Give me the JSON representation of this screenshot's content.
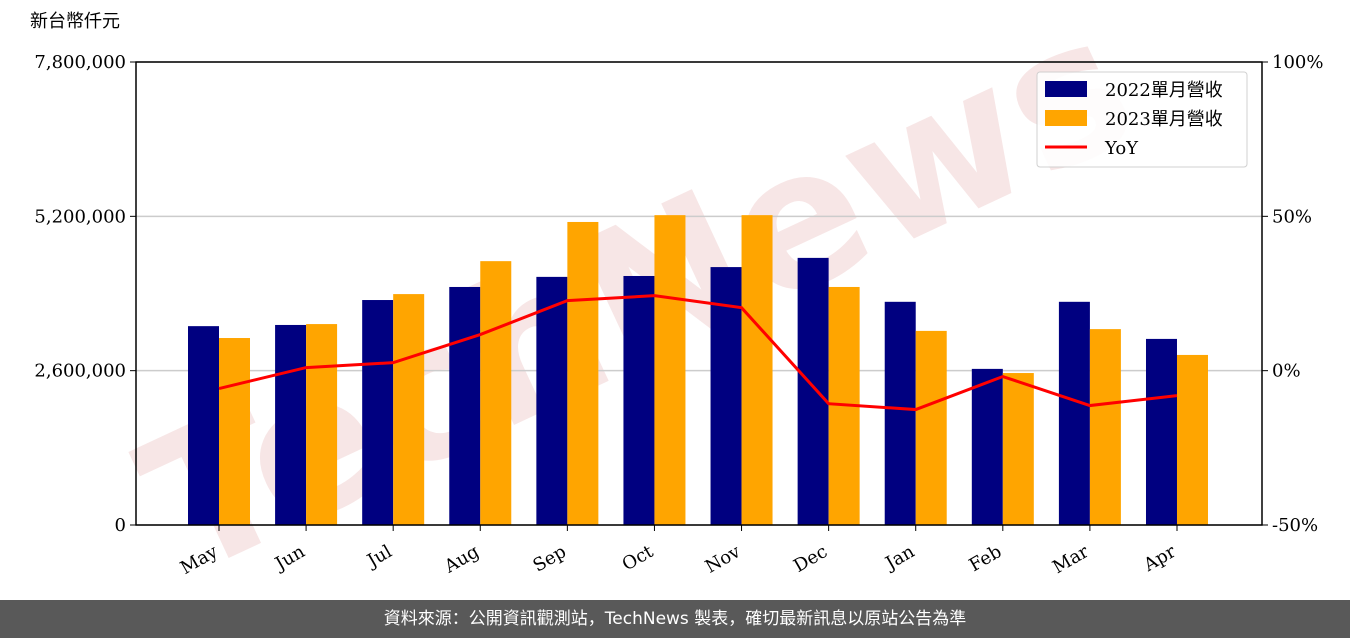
{
  "chart_data": {
    "type": "bar",
    "y_label": "新台幣仟元",
    "categories": [
      "May",
      "Jun",
      "Jul",
      "Aug",
      "Sep",
      "Oct",
      "Nov",
      "Dec",
      "Jan",
      "Feb",
      "Mar",
      "Apr"
    ],
    "series": [
      {
        "name": "2022單月營收",
        "color": "#000080",
        "type": "bar",
        "values": [
          3350000,
          3370000,
          3790000,
          4010000,
          4180000,
          4195000,
          4345000,
          4500000,
          3760000,
          2630000,
          3760000,
          3135000
        ]
      },
      {
        "name": "2023單月營收",
        "color": "#ffa500",
        "type": "bar",
        "values": [
          3150000,
          3385000,
          3890000,
          4445000,
          5105000,
          5220000,
          5220000,
          4010000,
          3270000,
          2560000,
          3300000,
          2865000
        ]
      },
      {
        "name": "YoY",
        "color": "#ff0000",
        "type": "line",
        "axis": "y2",
        "values": [
          -5.8,
          1.0,
          2.6,
          11.7,
          22.7,
          24.3,
          20.4,
          -10.7,
          -12.6,
          -1.9,
          -11.3,
          -8.1
        ]
      }
    ],
    "ylim": [
      0,
      7800000
    ],
    "yticks": [
      {
        "value": 0,
        "label": "0"
      },
      {
        "value": 2600000,
        "label": "2,600,000"
      },
      {
        "value": 5200000,
        "label": "5,200,000"
      },
      {
        "value": 7800000,
        "label": "7,800,000"
      }
    ],
    "y2lim": [
      -50,
      100
    ],
    "y2ticks": [
      {
        "value": -50,
        "label": "-50%"
      },
      {
        "value": 0,
        "label": "0%"
      },
      {
        "value": 50,
        "label": "50%"
      },
      {
        "value": 100,
        "label": "100%"
      }
    ],
    "grid": true,
    "legend": "upper right",
    "watermark": "TechNews",
    "footer": "資料來源：公開資訊觀測站，TechNews 製表，確切最新訊息以原站公告為準"
  }
}
